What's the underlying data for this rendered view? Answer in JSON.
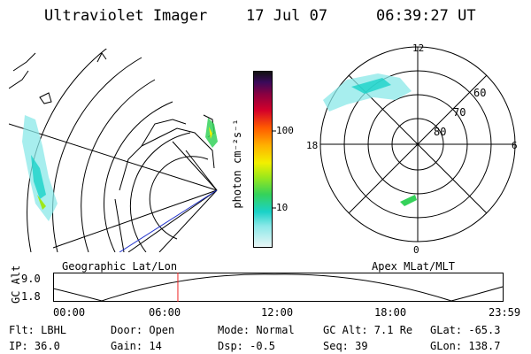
{
  "header": {
    "title": "Ultraviolet Imager",
    "date": "17 Jul 07",
    "time": "06:39:27 UT"
  },
  "map_left": {
    "caption": "Geographic Lat/Lon"
  },
  "polar_right": {
    "caption": "Apex MLat/MLT",
    "mlt_labels": [
      "12",
      "6",
      "0",
      "18"
    ],
    "lat_labels": [
      "60",
      "70",
      "80"
    ]
  },
  "colorbar": {
    "unit_label": "photon cm⁻²s⁻¹",
    "tick_labels": [
      "100",
      "10"
    ]
  },
  "timeline": {
    "axis_label": "GC Alt",
    "y_top": "9.0",
    "y_bottom": "1.8",
    "x_ticks": [
      "00:00",
      "06:00",
      "12:00",
      "18:00",
      "23:59"
    ],
    "current_time_hours": 6.66
  },
  "status": {
    "flt": "Flt: LBHL",
    "ip": "IP: 36.0",
    "door": "Door: Open",
    "gain": "Gain: 14",
    "mode": "Mode: Normal",
    "dsp": "Dsp:   -0.5",
    "gc_alt": "GC Alt: 7.1 Re",
    "seq": "Seq: 39",
    "glat": "GLat: -65.3",
    "glon": "GLon: 138.7"
  }
}
